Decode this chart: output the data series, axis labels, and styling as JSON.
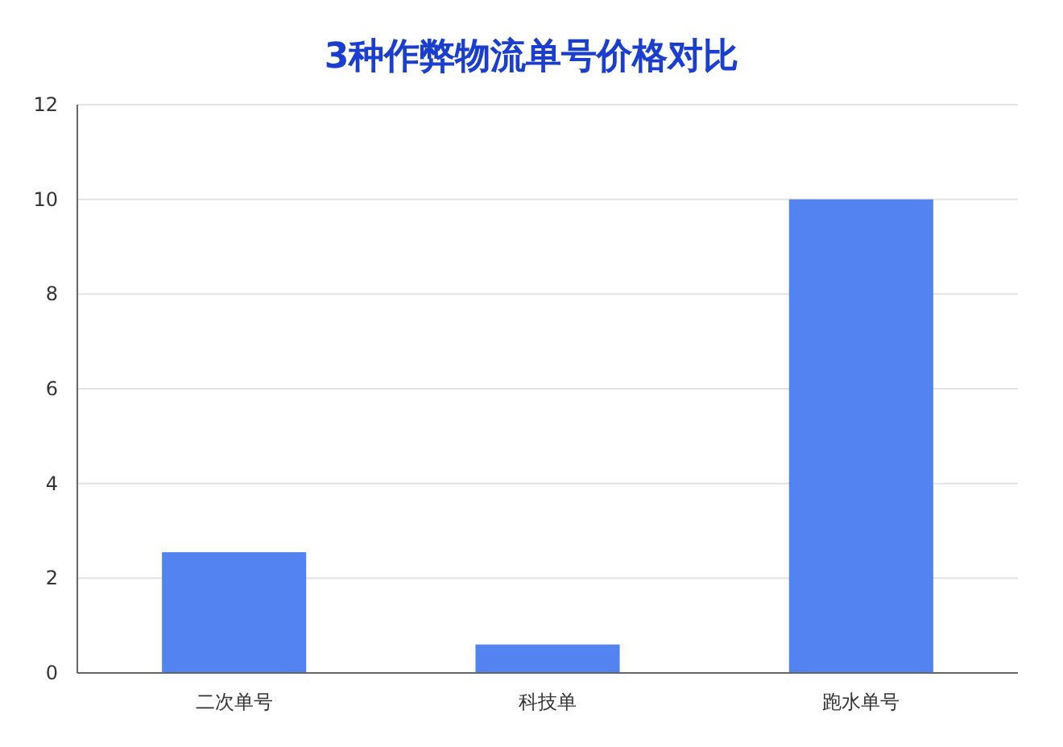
{
  "chart_data": {
    "type": "bar",
    "title": "3种作弊物流单号价格对比",
    "categories": [
      "二次单号",
      "科技单",
      "跑水单号"
    ],
    "values": [
      2.55,
      0.6,
      10
    ],
    "color": "#5283f0",
    "ylim": [
      0,
      12
    ],
    "yticks": [
      0,
      2,
      4,
      6,
      8,
      10,
      12
    ],
    "grid": "y",
    "legend": false
  }
}
